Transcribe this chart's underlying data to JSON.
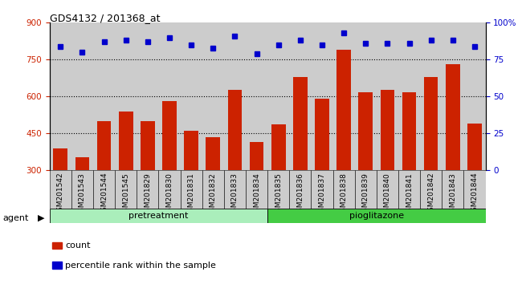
{
  "title": "GDS4132 / 201368_at",
  "categories": [
    "GSM201542",
    "GSM201543",
    "GSM201544",
    "GSM201545",
    "GSM201829",
    "GSM201830",
    "GSM201831",
    "GSM201832",
    "GSM201833",
    "GSM201834",
    "GSM201835",
    "GSM201836",
    "GSM201837",
    "GSM201838",
    "GSM201839",
    "GSM201840",
    "GSM201841",
    "GSM201842",
    "GSM201843",
    "GSM201844"
  ],
  "bar_values": [
    390,
    355,
    500,
    540,
    500,
    582,
    462,
    435,
    628,
    415,
    488,
    678,
    592,
    790,
    618,
    628,
    618,
    680,
    732,
    490
  ],
  "percentile_values": [
    84,
    80,
    87,
    88,
    87,
    90,
    85,
    83,
    91,
    79,
    85,
    88,
    85,
    93,
    86,
    86,
    86,
    88,
    88,
    84
  ],
  "bar_color": "#cc2200",
  "dot_color": "#0000cc",
  "ylim_left": [
    300,
    900
  ],
  "ylim_right": [
    0,
    100
  ],
  "yticks_left": [
    300,
    450,
    600,
    750,
    900
  ],
  "yticks_right": [
    0,
    25,
    50,
    75,
    100
  ],
  "grid_values": [
    450,
    600,
    750
  ],
  "pretreatment_count": 10,
  "pretreatment_label": "pretreatment",
  "pioglitazone_label": "pioglitazone",
  "agent_label": "agent",
  "legend_count": "count",
  "legend_percentile": "percentile rank within the sample",
  "pretreatment_color": "#aaeebb",
  "pioglitazone_color": "#44cc44",
  "right_yaxis_color": "#0000cc",
  "left_yaxis_color": "#cc2200",
  "background_color": "#cccccc",
  "xticklabel_bg": "#cccccc"
}
